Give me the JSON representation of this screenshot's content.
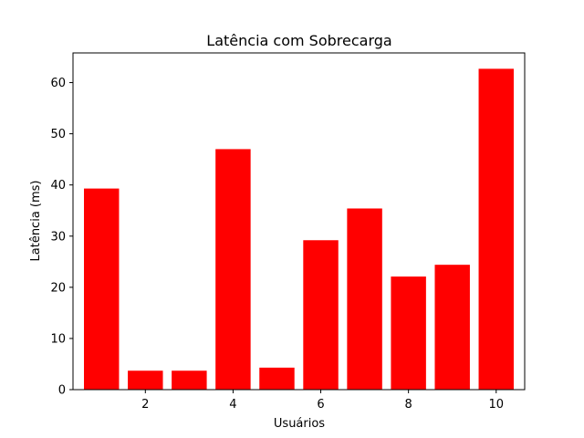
{
  "chart_data": {
    "type": "bar",
    "title": "Latência com Sobrecarga",
    "xlabel": "Usuários",
    "ylabel": "Latência (ms)",
    "x": [
      1,
      2,
      3,
      4,
      5,
      6,
      7,
      8,
      9,
      10
    ],
    "values": [
      39.3,
      3.7,
      3.7,
      47.0,
      4.3,
      29.2,
      35.4,
      22.1,
      24.4,
      62.7
    ],
    "xlim": [
      0.35,
      10.65
    ],
    "ylim": [
      0,
      65.8
    ],
    "xticks": [
      2,
      4,
      6,
      8,
      10
    ],
    "yticks": [
      0,
      10,
      20,
      30,
      40,
      50,
      60
    ],
    "bar_color": "#ff0000",
    "grid": false,
    "legend": "none"
  }
}
